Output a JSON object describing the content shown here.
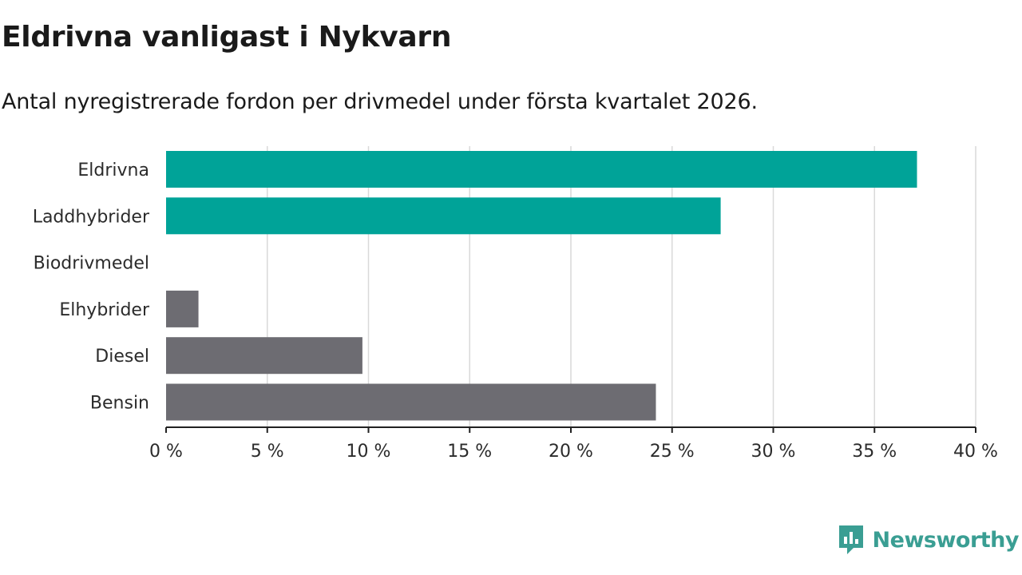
{
  "header": {
    "title": "Eldrivna vanligast i Nykvarn",
    "subtitle": "Antal nyregistrerade fordon per drivmedel under första kvartalet 2026."
  },
  "chart_data": {
    "type": "bar",
    "orientation": "horizontal",
    "title": "Eldrivna vanligast i Nykvarn",
    "subtitle": "Antal nyregistrerade fordon per drivmedel under första kvartalet 2026.",
    "categories": [
      "Eldrivna",
      "Laddhybrider",
      "Biodrivmedel",
      "Elhybrider",
      "Diesel",
      "Bensin"
    ],
    "values": [
      37.1,
      27.4,
      0,
      1.6,
      9.7,
      24.2
    ],
    "bar_colors": [
      "#00a398",
      "#00a398",
      "#00a398",
      "#6d6c72",
      "#6d6c72",
      "#6d6c72"
    ],
    "xlim": [
      0,
      40
    ],
    "xticks": [
      0,
      5,
      10,
      15,
      20,
      25,
      30,
      35,
      40
    ],
    "xtick_labels": [
      "0 %",
      "5 %",
      "10 %",
      "15 %",
      "20 %",
      "25 %",
      "30 %",
      "35 %",
      "40 %"
    ],
    "xlabel": "",
    "ylabel": "",
    "grid": "vertical"
  },
  "brand": {
    "name": "Newsworthy",
    "icon": "newsworthy-logo-icon",
    "color": "#3a9e93"
  },
  "colors": {
    "grid": "#d9d9d9",
    "axis": "#222222"
  }
}
